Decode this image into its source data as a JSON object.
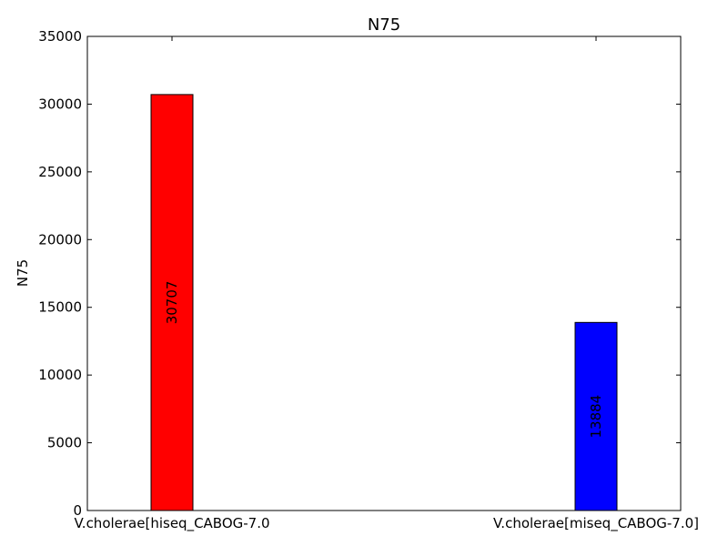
{
  "chart_data": {
    "type": "bar",
    "title": "N75",
    "xlabel": "",
    "ylabel": "N75",
    "categories": [
      "V.cholerae[hiseq_CABOG-7.0",
      "V.cholerae[miseq_CABOG-7.0]"
    ],
    "values": [
      30707,
      13884
    ],
    "value_labels": [
      "30707",
      "13884"
    ],
    "colors": [
      "#ff0000",
      "#0000ff"
    ],
    "ylim": [
      0,
      35000
    ],
    "yticks": [
      0,
      5000,
      10000,
      15000,
      20000,
      25000,
      30000,
      35000
    ],
    "ytick_labels": [
      "0",
      "5000",
      "10000",
      "15000",
      "20000",
      "25000",
      "30000",
      "35000"
    ],
    "grid": false,
    "legend": "none"
  }
}
